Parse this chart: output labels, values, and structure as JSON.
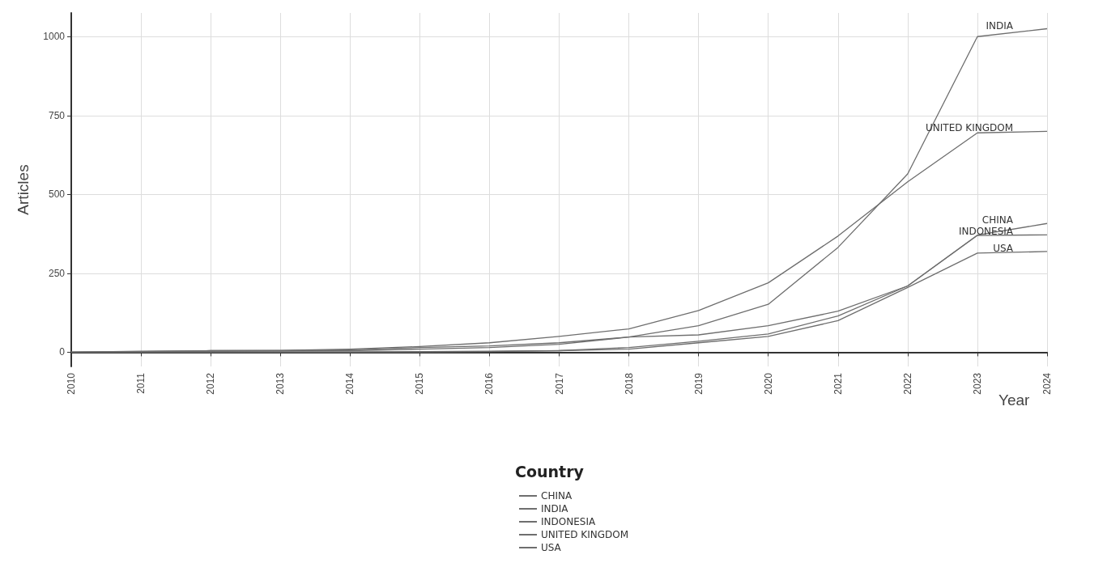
{
  "chart_data": {
    "type": "line",
    "xlabel": "Year",
    "ylabel": "Articles",
    "legend_title": "Country",
    "categories": [
      "2010",
      "2011",
      "2012",
      "2013",
      "2014",
      "2015",
      "2016",
      "2017",
      "2018",
      "2019",
      "2020",
      "2021",
      "2022",
      "2023",
      "2024"
    ],
    "ylim": [
      -45,
      1075
    ],
    "yticks": [
      0,
      250,
      500,
      750,
      1000
    ],
    "grid": true,
    "legend": "bottom",
    "marker": "none",
    "line_style": "solid",
    "series": [
      {
        "name": "CHINA",
        "color": "#6e6e6e",
        "values": [
          0,
          2,
          3,
          4,
          5,
          10,
          15,
          25,
          48,
          55,
          84,
          130,
          210,
          371,
          408
        ]
      },
      {
        "name": "INDIA",
        "color": "#6e6e6e",
        "values": [
          0,
          2,
          5,
          5,
          8,
          15,
          20,
          30,
          48,
          84,
          152,
          332,
          565,
          1000,
          1025
        ]
      },
      {
        "name": "INDONESIA",
        "color": "#6e6e6e",
        "values": [
          0,
          0,
          1,
          1,
          1,
          2,
          3,
          5,
          15,
          35,
          58,
          115,
          210,
          370,
          372
        ]
      },
      {
        "name": "UNITED KINGDOM",
        "color": "#6e6e6e",
        "values": [
          0,
          3,
          5,
          6,
          10,
          18,
          30,
          50,
          74,
          132,
          220,
          368,
          540,
          695,
          700
        ]
      },
      {
        "name": "USA",
        "color": "#6e6e6e",
        "values": [
          0,
          0,
          0,
          1,
          1,
          1,
          2,
          5,
          10,
          30,
          50,
          100,
          205,
          314,
          319
        ]
      }
    ]
  }
}
